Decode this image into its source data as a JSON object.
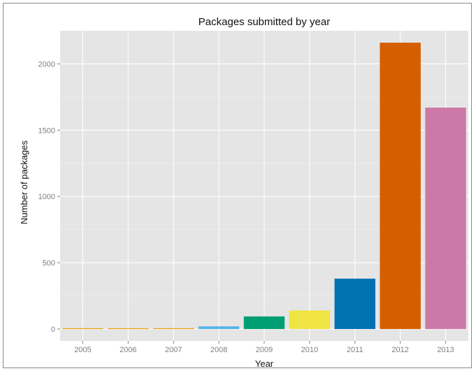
{
  "chart_data": {
    "type": "bar",
    "title": "Packages submitted by year",
    "xlabel": "Year",
    "ylabel": "Number of packages",
    "categories": [
      "2005",
      "2006",
      "2007",
      "2008",
      "2009",
      "2010",
      "2011",
      "2012",
      "2013"
    ],
    "values": [
      3,
      5,
      6,
      20,
      95,
      140,
      380,
      2160,
      1670
    ],
    "colors": [
      "#E69F00",
      "#E69F00",
      "#E69F00",
      "#56B4E9",
      "#009E73",
      "#F0E442",
      "#0072B2",
      "#D55E00",
      "#CC79A7"
    ],
    "ylim": [
      -90,
      2250
    ],
    "yticks": [
      0,
      500,
      1000,
      1500,
      2000
    ],
    "grid": true,
    "legend": "none",
    "panel_background": "#E5E5E5"
  }
}
